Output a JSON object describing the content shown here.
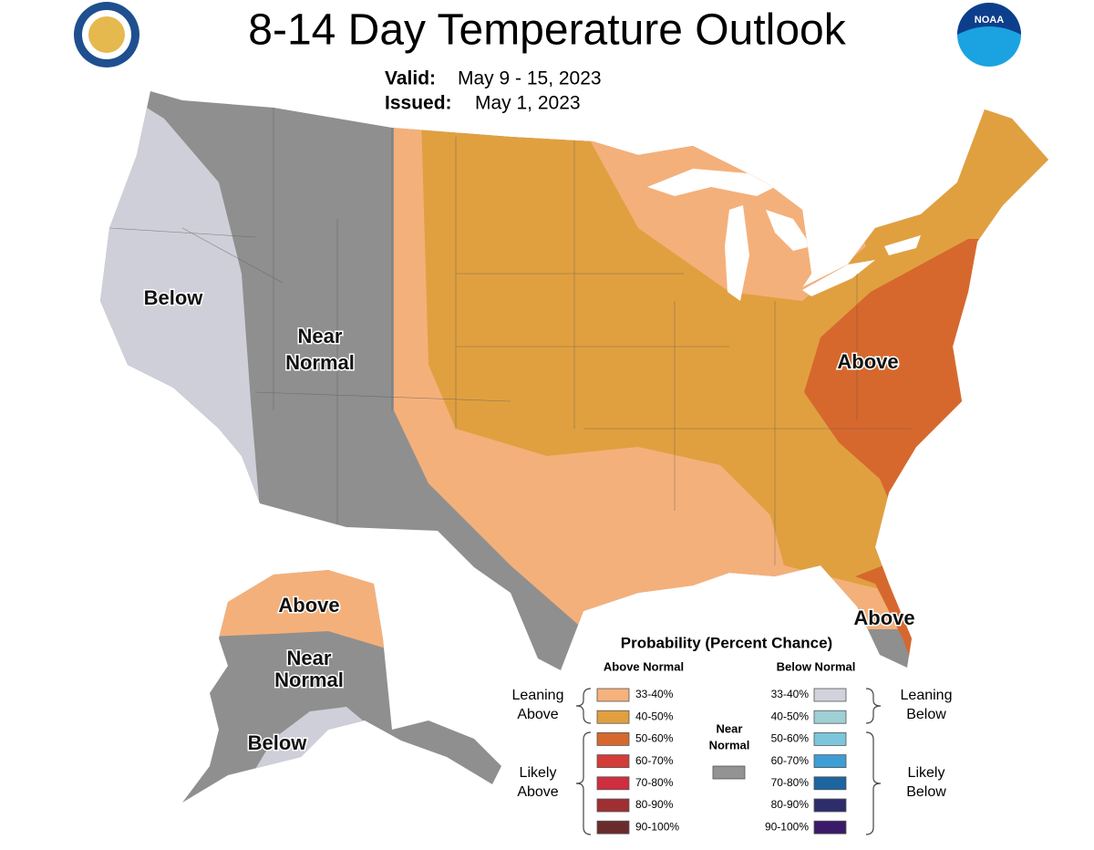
{
  "header": {
    "title": "8-14 Day Temperature Outlook",
    "valid_label": "Valid:",
    "valid_value": "May 9 - 15, 2023",
    "issued_label": "Issued:",
    "issued_value": "May 1, 2023",
    "logo_text": "NOAA"
  },
  "map_labels": {
    "west": [
      "Below"
    ],
    "mountain": [
      "Near",
      "Normal"
    ],
    "east": [
      "Above"
    ],
    "florida": [
      "Above"
    ],
    "alaska_north": [
      "Above"
    ],
    "alaska_middle": [
      "Near",
      "Normal"
    ],
    "alaska_south": [
      "Below"
    ]
  },
  "legend": {
    "title": "Probability (Percent Chance)",
    "above_heading": "Above Normal",
    "below_heading": "Below Normal",
    "leaning_above": [
      "Leaning",
      "Above"
    ],
    "likely_above": [
      "Likely",
      "Above"
    ],
    "leaning_below": [
      "Leaning",
      "Below"
    ],
    "likely_below": [
      "Likely",
      "Below"
    ],
    "near_normal": [
      "Near",
      "Normal"
    ],
    "near_normal_color": "#939393",
    "above": [
      {
        "label": "33-40%",
        "color": "#f5b27c"
      },
      {
        "label": "40-50%",
        "color": "#e0a040"
      },
      {
        "label": "50-60%",
        "color": "#d6682e"
      },
      {
        "label": "60-70%",
        "color": "#d43c38"
      },
      {
        "label": "70-80%",
        "color": "#cf2e3e"
      },
      {
        "label": "80-90%",
        "color": "#9e2f33"
      },
      {
        "label": "90-100%",
        "color": "#6a2b2c"
      }
    ],
    "below": [
      {
        "label": "33-40%",
        "color": "#d2d2dd"
      },
      {
        "label": "40-50%",
        "color": "#9fd0d6"
      },
      {
        "label": "50-60%",
        "color": "#7cc6dc"
      },
      {
        "label": "60-70%",
        "color": "#3e9dd5"
      },
      {
        "label": "70-80%",
        "color": "#1c659f"
      },
      {
        "label": "80-90%",
        "color": "#2d2d6c"
      },
      {
        "label": "90-100%",
        "color": "#3b1a69"
      }
    ]
  }
}
